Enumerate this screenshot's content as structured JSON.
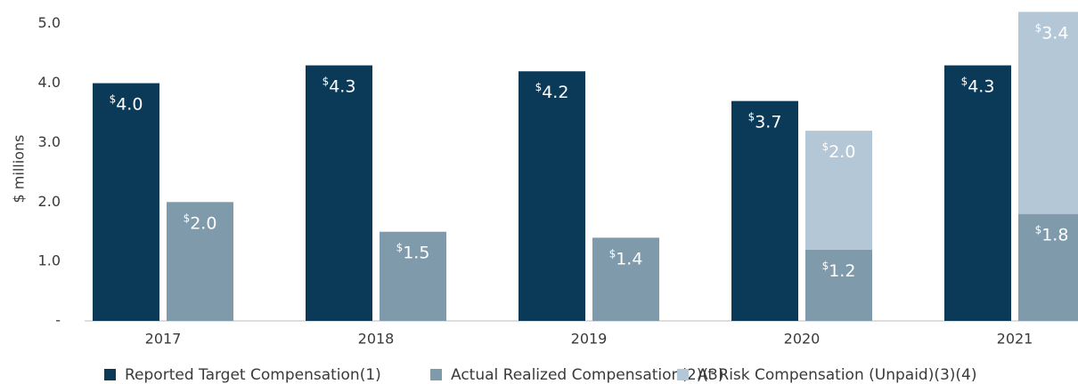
{
  "chart_data": {
    "type": "bar",
    "ylabel": "$ millions",
    "categories": [
      "2017",
      "2018",
      "2019",
      "2020",
      "2021"
    ],
    "series": [
      {
        "name": "Reported Target Compensation(1)",
        "color": "#0b3a59",
        "stack": "a",
        "values": [
          4.0,
          4.3,
          4.2,
          3.7,
          4.3
        ],
        "value_labels": [
          "$4.0",
          "$4.3",
          "$4.2",
          "$3.7",
          "$4.3"
        ]
      },
      {
        "name": "Actual Realized Compensation(2)(3)",
        "color": "#7f9aab",
        "stack": "b",
        "values": [
          2.0,
          1.5,
          1.4,
          1.2,
          1.8
        ],
        "value_labels": [
          "$2.0",
          "$1.5",
          "$1.4",
          "$1.2",
          "$1.8"
        ]
      },
      {
        "name": "At Risk Compensation (Unpaid)(3)(4)",
        "color": "#b4c7d7",
        "stack": "b",
        "values": [
          null,
          null,
          null,
          2.0,
          3.4
        ],
        "value_labels": [
          null,
          null,
          null,
          "$2.0",
          "$3.4"
        ]
      }
    ],
    "ylim": [
      0,
      5.4
    ],
    "yticks": [
      {
        "value": 0,
        "label": "-"
      },
      {
        "value": 1,
        "label": "1.0"
      },
      {
        "value": 2,
        "label": "2.0"
      },
      {
        "value": 3,
        "label": "3.0"
      },
      {
        "value": 4,
        "label": "4.0"
      },
      {
        "value": 5,
        "label": "5.0"
      }
    ],
    "grid": false,
    "legend": "bottom"
  }
}
